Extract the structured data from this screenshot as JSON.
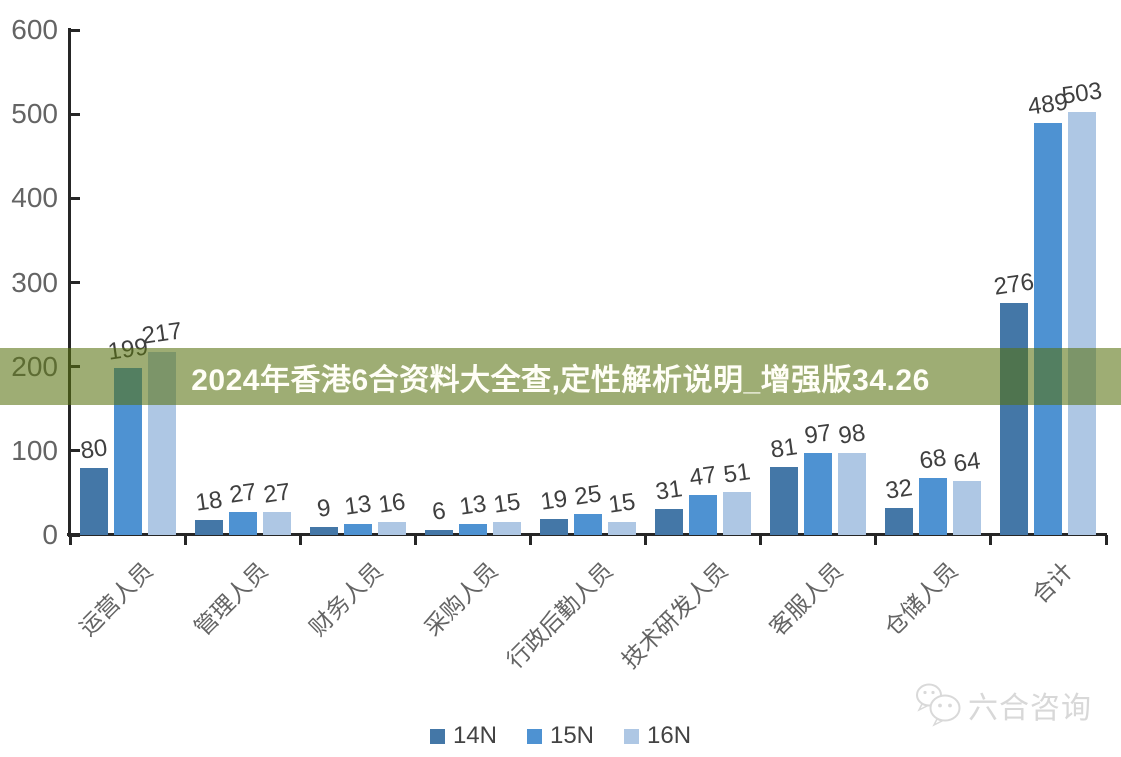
{
  "banner": {
    "text": "2024年香港6合资料大全查,定性解析说明_增强版34.26",
    "bg_color": "#58720f",
    "text_color": "#fffef6"
  },
  "chart_data": {
    "type": "bar",
    "title": "",
    "xlabel": "",
    "ylabel": "",
    "categories": [
      "运营人员",
      "管理人员",
      "财务人员",
      "采购人员",
      "行政后勤人员",
      "技术研发人员",
      "客服人员",
      "仓储人员",
      "合计"
    ],
    "series": [
      {
        "name": "14N",
        "color": "#4477a7",
        "values": [
          80,
          18,
          9,
          6,
          19,
          31,
          81,
          32,
          276
        ]
      },
      {
        "name": "15N",
        "color": "#4e92d2",
        "values": [
          199,
          27,
          13,
          13,
          25,
          47,
          97,
          68,
          489
        ]
      },
      {
        "name": "16N",
        "color": "#aec7e4",
        "values": [
          217,
          27,
          16,
          15,
          15,
          51,
          98,
          64,
          503
        ]
      }
    ],
    "ylim": [
      0,
      600
    ],
    "yticks": [
      0,
      100,
      200,
      300,
      400,
      500,
      600
    ],
    "grid": false,
    "legend_position": "bottom",
    "axis_color": "#262626",
    "tick_label_color": "#646464",
    "value_label_color": "#3f3f3f",
    "category_label_rotation_deg": -45,
    "value_label_rotation_deg": -8
  },
  "watermark": {
    "text": "六合咨询",
    "icon": "wechat-chat-bubbles-icon"
  }
}
